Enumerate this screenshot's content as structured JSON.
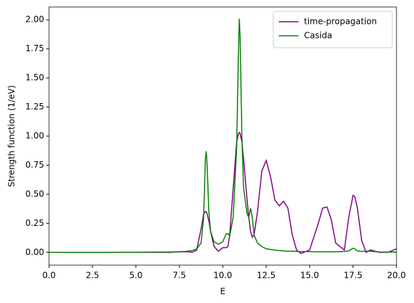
{
  "chart_data": {
    "type": "line",
    "xlabel": "E",
    "ylabel": "Strength function (1/eV)",
    "x": [
      0,
      1,
      2,
      3,
      4,
      5,
      6,
      7,
      7.5,
      8,
      8.25,
      8.5,
      8.75,
      8.9,
      9.0,
      9.05,
      9.1,
      9.2,
      9.3,
      9.5,
      9.75,
      10.0,
      10.2,
      10.3,
      10.4,
      10.6,
      10.8,
      10.9,
      10.95,
      11.0,
      11.1,
      11.2,
      11.4,
      11.5,
      11.6,
      11.7,
      11.8,
      12.0,
      12.25,
      12.5,
      12.75,
      13.0,
      13.25,
      13.5,
      13.75,
      14.0,
      14.25,
      14.5,
      15.0,
      15.5,
      15.75,
      16.0,
      16.25,
      16.5,
      17.0,
      17.25,
      17.5,
      17.6,
      17.75,
      18.0,
      18.25,
      18.5,
      19.0,
      19.5,
      20.0
    ],
    "series": [
      {
        "name": "time-propagation",
        "color": "#800080",
        "values": [
          0,
          0,
          0,
          0,
          0,
          0,
          0,
          0,
          0.005,
          0.005,
          0,
          0.02,
          0.2,
          0.33,
          0.35,
          0.35,
          0.33,
          0.27,
          0.18,
          0.05,
          0.01,
          0.04,
          0.04,
          0.05,
          0.15,
          0.55,
          0.95,
          1.02,
          1.03,
          1.02,
          0.95,
          0.8,
          0.45,
          0.3,
          0.18,
          0.13,
          0.15,
          0.35,
          0.7,
          0.79,
          0.65,
          0.45,
          0.4,
          0.44,
          0.38,
          0.15,
          0.02,
          -0.01,
          0.02,
          0.25,
          0.38,
          0.39,
          0.28,
          0.08,
          0.02,
          0.3,
          0.49,
          0.48,
          0.38,
          0.1,
          0,
          0.02,
          0,
          0,
          0.03
        ]
      },
      {
        "name": "Casida",
        "color": "#008000",
        "values": [
          0,
          0,
          0,
          0,
          0.001,
          0.001,
          0.002,
          0.003,
          0.005,
          0.01,
          0.015,
          0.03,
          0.08,
          0.3,
          0.8,
          0.87,
          0.75,
          0.35,
          0.18,
          0.09,
          0.07,
          0.09,
          0.16,
          0.16,
          0.14,
          0.3,
          0.9,
          1.7,
          2.01,
          1.85,
          1.0,
          0.55,
          0.33,
          0.3,
          0.38,
          0.3,
          0.15,
          0.08,
          0.05,
          0.03,
          0.025,
          0.02,
          0.015,
          0.012,
          0.01,
          0.01,
          0.008,
          0.007,
          0.006,
          0.005,
          0.005,
          0.005,
          0.005,
          0.005,
          0.008,
          0.012,
          0.035,
          0.03,
          0.012,
          0.008,
          0.01,
          0.01,
          0.003,
          0.002,
          0.002
        ]
      }
    ],
    "xlim": [
      0,
      20
    ],
    "ylim": [
      -0.11,
      2.11
    ],
    "xticks": [
      {
        "value": 0,
        "label": "0.0"
      },
      2.5,
      {
        "value": 5,
        "label": "5.0"
      },
      7.5,
      {
        "value": 10,
        "label": "10.0"
      },
      12.5,
      {
        "value": 15,
        "label": "15.0"
      },
      17.5,
      {
        "value": 20,
        "label": "20.0"
      }
    ],
    "yticks": [
      {
        "value": 0,
        "label": "0.00"
      },
      {
        "value": 0.25,
        "label": "0.25"
      },
      {
        "value": 0.5,
        "label": "0.50"
      },
      {
        "value": 0.75,
        "label": "0.75"
      },
      {
        "value": 1,
        "label": "1.00"
      },
      {
        "value": 1.25,
        "label": "1.25"
      },
      {
        "value": 1.5,
        "label": "1.50"
      },
      {
        "value": 1.75,
        "label": "1.75"
      },
      {
        "value": 2,
        "label": "2.00"
      }
    ],
    "legend": "upper right",
    "grid": false
  }
}
